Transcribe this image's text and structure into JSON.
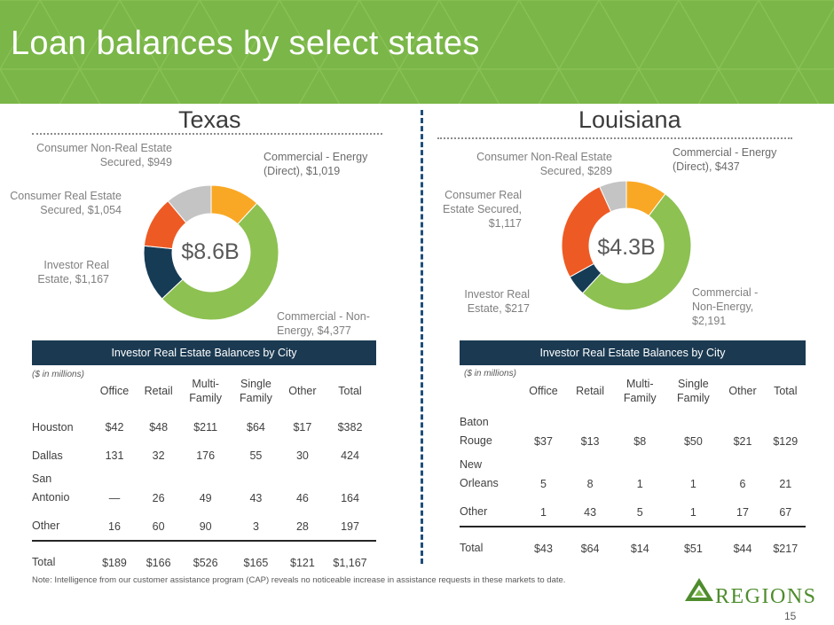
{
  "title": "Loan balances by select states",
  "page_number": "15",
  "note": "Note: Intelligence from our customer assistance program (CAP) reveals no noticeable increase in assistance requests in these markets to date.",
  "logo_text": "Regions",
  "colors": {
    "banner": "#7ab648",
    "table_header": "#1b3a52",
    "energy": "#f9a825",
    "non_energy": "#8dc152",
    "investor": "#163b55",
    "consumer_re": "#ee5a24",
    "consumer_nonre": "#c4c4c4"
  },
  "texas": {
    "title": "Texas",
    "total_label": "$8.6B",
    "labels": {
      "energy": [
        "Commercial - Energy",
        "(Direct), $1,019"
      ],
      "non_energy": [
        "Commercial - Non-",
        "Energy, $4,377"
      ],
      "investor": [
        "Investor Real",
        "Estate, $1,167"
      ],
      "consumer_re": [
        "Consumer Real Estate",
        "Secured, $1,054"
      ],
      "consumer_nonre": [
        "Consumer Non-Real Estate",
        "Secured, $949"
      ]
    },
    "table": {
      "header": "Investor Real Estate Balances by City",
      "units": "($ in millions)",
      "columns": [
        "Office",
        "Retail",
        "Multi-|Family",
        "Single|Family",
        "Other",
        "Total"
      ],
      "rows": [
        {
          "city": "Houston",
          "values": [
            "$42",
            "$48",
            "$211",
            "$64",
            "$17",
            "$382"
          ]
        },
        {
          "city": "Dallas",
          "values": [
            "131",
            "32",
            "176",
            "55",
            "30",
            "424"
          ]
        },
        {
          "city": "San|Antonio",
          "values": [
            "—",
            "26",
            "49",
            "43",
            "46",
            "164"
          ]
        },
        {
          "city": "Other",
          "values": [
            "16",
            "60",
            "90",
            "3",
            "28",
            "197"
          ]
        },
        {
          "city": "Total",
          "values": [
            "$189",
            "$166",
            "$526",
            "$165",
            "$121",
            "$1,167"
          ]
        }
      ]
    }
  },
  "louisiana": {
    "title": "Louisiana",
    "total_label": "$4.3B",
    "labels": {
      "energy": [
        "Commercial - Energy",
        "(Direct), $437"
      ],
      "non_energy": [
        "Commercial -",
        "Non-Energy,",
        "$2,191"
      ],
      "investor": [
        "Investor Real",
        "Estate, $217"
      ],
      "consumer_re": [
        "Consumer Real",
        "Estate Secured,",
        "$1,117"
      ],
      "consumer_nonre": [
        "Consumer Non-Real Estate",
        "Secured, $289"
      ]
    },
    "table": {
      "header": "Investor Real Estate Balances by City",
      "units": "($ in millions)",
      "columns": [
        "Office",
        "Retail",
        "Multi-|Family",
        "Single|Family",
        "Other",
        "Total"
      ],
      "rows": [
        {
          "city": "Baton|Rouge",
          "values": [
            "$37",
            "$13",
            "$8",
            "$50",
            "$21",
            "$129"
          ]
        },
        {
          "city": "New|Orleans",
          "values": [
            "5",
            "8",
            "1",
            "1",
            "6",
            "21"
          ]
        },
        {
          "city": "Other",
          "values": [
            "1",
            "43",
            "5",
            "1",
            "17",
            "67"
          ]
        },
        {
          "city": "Total",
          "values": [
            "$43",
            "$64",
            "$14",
            "$51",
            "$44",
            "$217"
          ]
        }
      ]
    }
  },
  "chart_data": [
    {
      "type": "pie",
      "title": "Texas",
      "center_label": "$8.6B",
      "categories": [
        "Commercial - Energy (Direct)",
        "Commercial - Non-Energy",
        "Investor Real Estate",
        "Consumer Real Estate Secured",
        "Consumer Non-Real Estate Secured"
      ],
      "values": [
        1019,
        4377,
        1167,
        1054,
        949
      ]
    },
    {
      "type": "pie",
      "title": "Louisiana",
      "center_label": "$4.3B",
      "categories": [
        "Commercial - Energy (Direct)",
        "Commercial - Non-Energy",
        "Investor Real Estate",
        "Consumer Real Estate Secured",
        "Consumer Non-Real Estate Secured"
      ],
      "values": [
        437,
        2191,
        217,
        1117,
        289
      ]
    },
    {
      "type": "table",
      "title": "Investor Real Estate Balances by City",
      "columns": [
        "",
        "Office",
        "Retail",
        "Multi-Family",
        "Single Family",
        "Other",
        "Total"
      ],
      "rows": [
        [
          "Houston",
          "$42",
          "$48",
          "$211",
          "$64",
          "$17",
          "$382"
        ],
        [
          "Dallas",
          "131",
          "32",
          "176",
          "55",
          "30",
          "424"
        ],
        [
          "San Antonio",
          "—",
          "26",
          "49",
          "43",
          "46",
          "164"
        ],
        [
          "Other",
          "16",
          "60",
          "90",
          "3",
          "28",
          "197"
        ],
        [
          "Total",
          "$189",
          "$166",
          "$526",
          "$165",
          "$121",
          "$1,167"
        ]
      ]
    },
    {
      "type": "table",
      "title": "Investor Real Estate Balances by City",
      "columns": [
        "",
        "Office",
        "Retail",
        "Multi-Family",
        "Single Family",
        "Other",
        "Total"
      ],
      "rows": [
        [
          "Baton Rouge",
          "$37",
          "$13",
          "$8",
          "$50",
          "$21",
          "$129"
        ],
        [
          "New Orleans",
          "5",
          "8",
          "1",
          "1",
          "6",
          "21"
        ],
        [
          "Other",
          "1",
          "43",
          "5",
          "1",
          "17",
          "67"
        ],
        [
          "Total",
          "$43",
          "$64",
          "$14",
          "$51",
          "$44",
          "$217"
        ]
      ]
    }
  ]
}
